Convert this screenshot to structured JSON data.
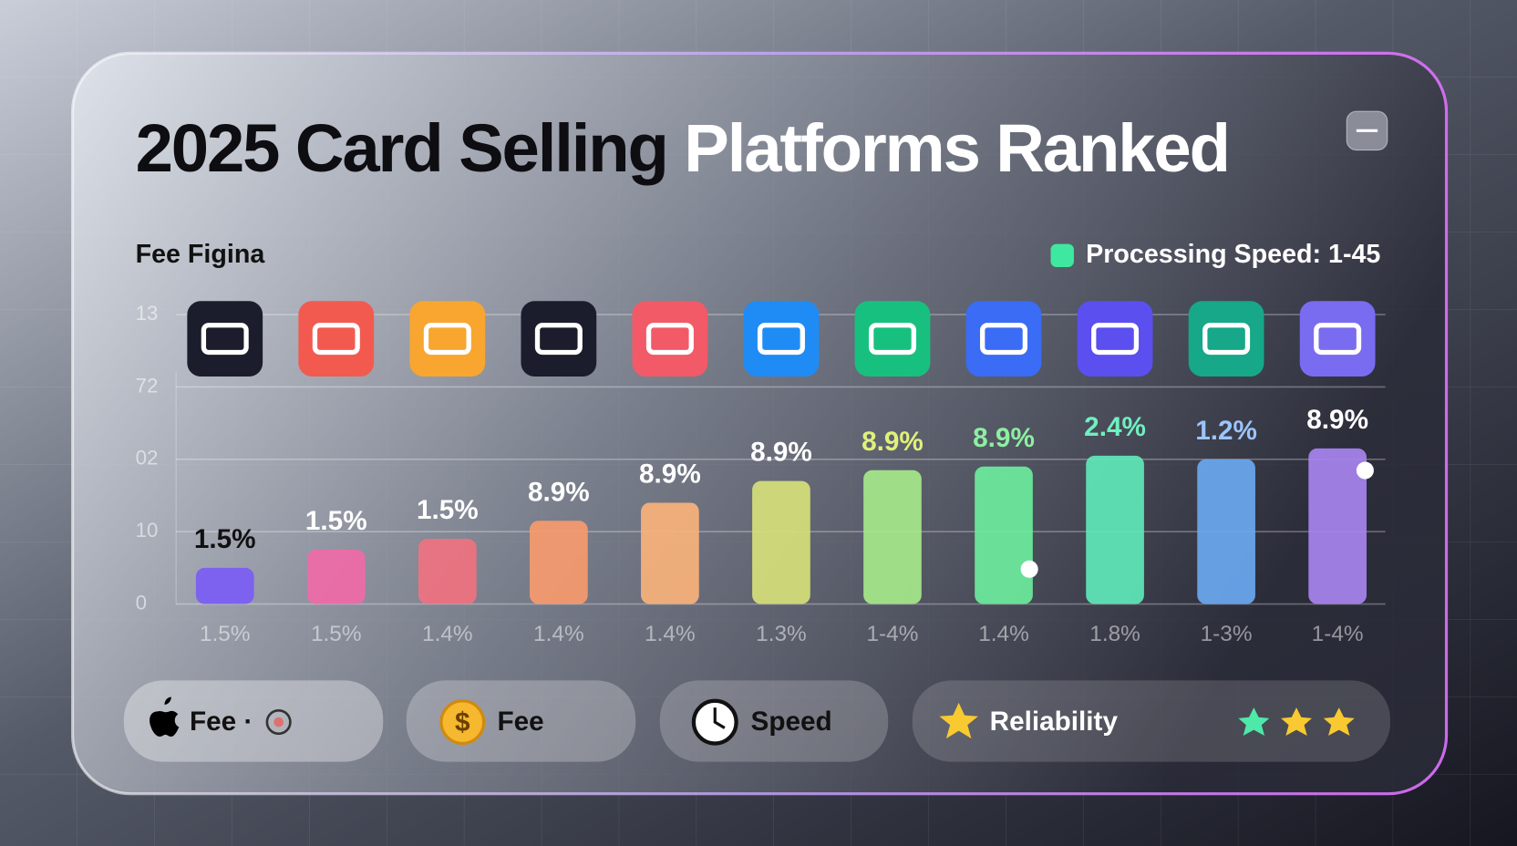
{
  "chart_data": {
    "type": "bar",
    "title_parts": [
      "2025 Card Selling",
      "Platforms Ranked"
    ],
    "subtitle": "Fee Figina",
    "legend_label": "Processing Speed: 1-45",
    "categories": [
      "1.5%",
      "1.5%",
      "1.4%",
      "1.4%",
      "1.4%",
      "1.3%",
      "1-4%",
      "1.4%",
      "1.8%",
      "1-3%",
      "1-4%"
    ],
    "values": [
      0.5,
      0.75,
      0.9,
      1.15,
      1.4,
      1.7,
      1.85,
      1.9,
      2.05,
      2.0,
      2.15
    ],
    "colors": [
      "#7b5cf5",
      "#f06aa8",
      "#f07280",
      "#f79a6e",
      "#f8b27a",
      "#d6e07a",
      "#a6e88a",
      "#6cec9c",
      "#5fe8b8",
      "#6aa8f0",
      "#a884f0"
    ],
    "annotations": [
      "1.5%",
      "1.5%",
      "1.5%",
      "8.9%",
      "8.9%",
      "8.9%",
      "8.9%",
      "8.9%",
      "2.4%",
      "1.2%",
      "8.9%"
    ],
    "annotation_colors": [
      "#111111",
      "#ffffff",
      "#ffffff",
      "#ffffff",
      "#ffffff",
      "#ffffff",
      "#e0f07a",
      "#8cf0a0",
      "#6ff0c0",
      "#9cc4ff",
      "#ffffff"
    ],
    "ylim": [
      0,
      4
    ],
    "yticks": [
      0,
      {
        "value": 1,
        "label": "10"
      },
      {
        "value": 2,
        "label": "02"
      },
      {
        "value": 3,
        "label": "72"
      },
      {
        "value": 4,
        "label": "13"
      }
    ],
    "grid": true,
    "footer_pills": [
      "Fee ·",
      "Fee",
      "Speed",
      "Reliability"
    ]
  }
}
